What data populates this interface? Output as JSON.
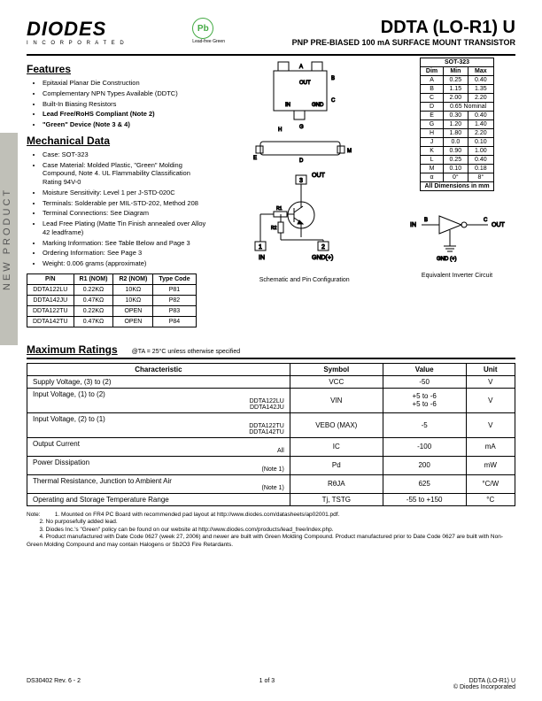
{
  "sideTab": "NEW PRODUCT",
  "logo": {
    "main": "DIODES",
    "sub": "I N C O R P O R A T E D"
  },
  "pbBadge": {
    "symbol": "Pb",
    "label": "Lead-free Green"
  },
  "title": {
    "main": "DDTA (LO-R1) U",
    "sub": "PNP PRE-BIASED 100 mA SURFACE MOUNT TRANSISTOR"
  },
  "features": {
    "heading": "Features",
    "items": [
      {
        "text": "Epitaxial Planar Die Construction",
        "bold": false
      },
      {
        "text": "Complementary NPN Types Available (DDTC)",
        "bold": false
      },
      {
        "text": "Built-In Biasing Resistors",
        "bold": false
      },
      {
        "text": "Lead Free/RoHS Compliant (Note 2)",
        "bold": true
      },
      {
        "text": "\"Green\" Device (Note 3 & 4)",
        "bold": true
      }
    ]
  },
  "mechanical": {
    "heading": "Mechanical Data",
    "items": [
      "Case: SOT-323",
      "Case Material: Molded Plastic, \"Green\" Molding Compound, Note 4. UL Flammability Classification Rating 94V-0",
      "Moisture Sensitivity: Level 1 per J-STD-020C",
      "Terminals: Solderable per MIL-STD-202, Method 208",
      "Terminal Connections: See Diagram",
      "Lead Free Plating (Matte Tin Finish annealed over Alloy 42 leadframe)",
      "Marking Information: See Table Below and Page 3",
      "Ordering Information: See Page 3",
      "Weight: 0.006 grams (approximate)"
    ]
  },
  "dimTable": {
    "title": "SOT-323",
    "headers": [
      "Dim",
      "Min",
      "Max"
    ],
    "rows": [
      [
        "A",
        "0.25",
        "0.40"
      ],
      [
        "B",
        "1.15",
        "1.35"
      ],
      [
        "C",
        "2.00",
        "2.20"
      ],
      [
        "D",
        "0.65 Nominal",
        ""
      ],
      [
        "E",
        "0.30",
        "0.40"
      ],
      [
        "G",
        "1.20",
        "1.40"
      ],
      [
        "H",
        "1.80",
        "2.20"
      ],
      [
        "J",
        "0.0",
        "0.10"
      ],
      [
        "K",
        "0.90",
        "1.00"
      ],
      [
        "L",
        "0.25",
        "0.40"
      ],
      [
        "M",
        "0.10",
        "0.18"
      ],
      [
        "α",
        "0°",
        "8°"
      ]
    ],
    "footer": "All Dimensions in mm"
  },
  "pnTable": {
    "headers": [
      "P/N",
      "R1 (NOM)",
      "R2 (NOM)",
      "Type Code"
    ],
    "rows": [
      [
        "DDTA122LU",
        "0.22KΩ",
        "10KΩ",
        "P81"
      ],
      [
        "DDTA142JU",
        "0.47KΩ",
        "10KΩ",
        "P82"
      ],
      [
        "DDTA122TU",
        "0.22KΩ",
        "OPEN",
        "P83"
      ],
      [
        "DDTA142TU",
        "0.47KΩ",
        "OPEN",
        "P84"
      ]
    ]
  },
  "schematic": {
    "labels": {
      "out": "OUT",
      "in": "IN",
      "gnd": "GND(+)",
      "pin1": "1",
      "pin2": "2",
      "pin3": "3",
      "r1": "R1",
      "r2": "R2"
    },
    "caption": "Schematic and Pin Configuration"
  },
  "inverter": {
    "labels": {
      "in": "IN",
      "out": "OUT",
      "gnd": "GND (+)",
      "b": "B",
      "c": "C"
    },
    "caption": "Equivalent Inverter Circuit"
  },
  "ratings": {
    "heading": "Maximum Ratings",
    "condition": "@TA = 25°C unless otherwise specified",
    "headers": [
      "Characteristic",
      "Symbol",
      "Value",
      "Unit"
    ],
    "rows": [
      {
        "char": "Supply Voltage, (3) to (2)",
        "sub": "",
        "sym": "VCC",
        "val": "-50",
        "unit": "V"
      },
      {
        "char": "Input Voltage, (1) to (2)",
        "sub": "DDTA122LU\nDDTA142JU",
        "sym": "VIN",
        "val": "+5 to -6\n+5 to -6",
        "unit": "V"
      },
      {
        "char": "Input Voltage, (2) to (1)",
        "sub": "DDTA122TU\nDDTA142TU",
        "sym": "VEBO (MAX)",
        "val": "-5",
        "unit": "V"
      },
      {
        "char": "Output Current",
        "sub": "All",
        "sym": "IC",
        "val": "-100",
        "unit": "mA"
      },
      {
        "char": "Power Dissipation",
        "sub": "(Note 1)",
        "sym": "Pd",
        "val": "200",
        "unit": "mW"
      },
      {
        "char": "Thermal Resistance, Junction to Ambient Air",
        "sub": "(Note 1)",
        "sym": "RθJA",
        "val": "625",
        "unit": "°C/W"
      },
      {
        "char": "Operating and Storage Temperature Range",
        "sub": "",
        "sym": "Tj, TSTG",
        "val": "-55 to +150",
        "unit": "°C"
      }
    ]
  },
  "notes": {
    "label": "Note:",
    "items": [
      "1. Mounted on FR4 PC Board with recommended pad layout at http://www.diodes.com/datasheets/ap02001.pdf.",
      "2. No purposefully added lead.",
      "3. Diodes Inc.'s \"Green\" policy can be found on our website at http://www.diodes.com/products/lead_free/index.php.",
      "4. Product manufactured with Date Code 0627 (week 27, 2006) and newer are built with Green Molding Compound. Product manufactured prior to Date Code 0627 are built with Non-Green Molding Compound and may contain Halogens or Sb2O3 Fire Retardants."
    ]
  },
  "footer": {
    "left": "DS30402 Rev. 6 - 2",
    "center": "1 of 3",
    "right1": "DDTA (LO-R1) U",
    "right2": "© Diodes Incorporated"
  },
  "colors": {
    "stroke": "#000000",
    "green": "#44aa44",
    "gray": "#c0c0b8"
  }
}
